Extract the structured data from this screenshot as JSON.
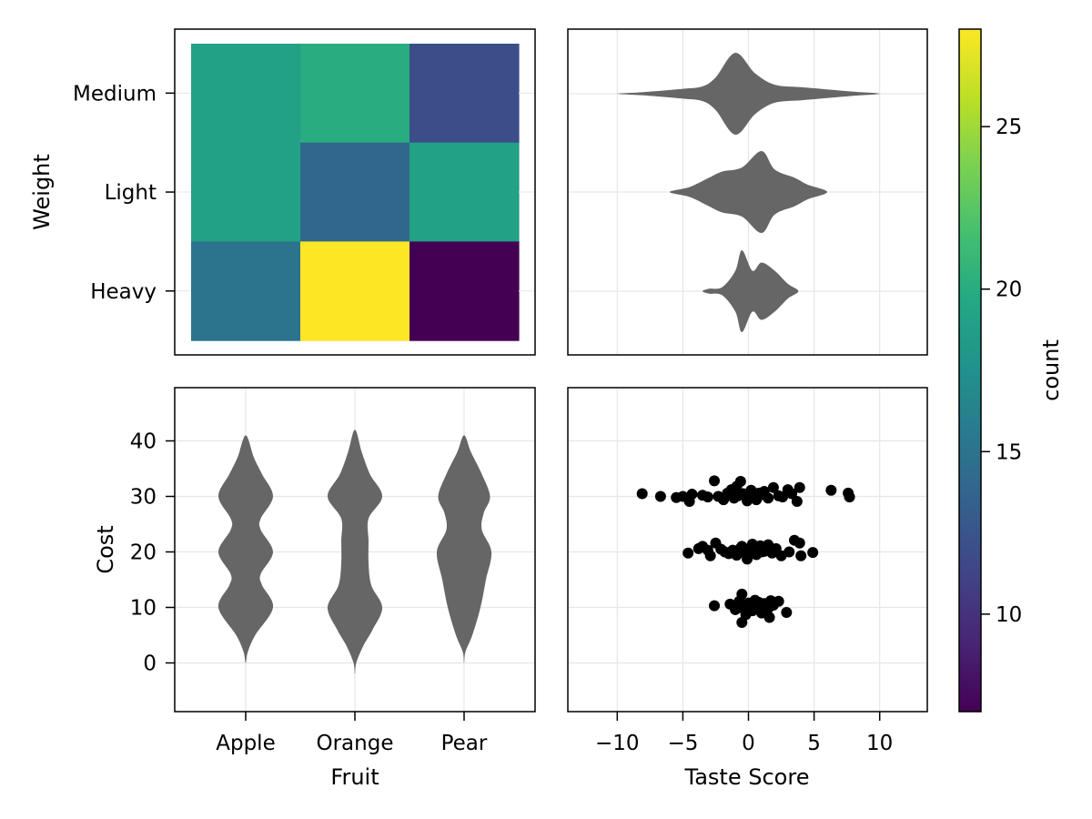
{
  "chart_data": [
    {
      "type": "heatmap",
      "panel": "top-left",
      "xlabel": "",
      "ylabel": "Weight",
      "x_categories": [
        "Apple",
        "Orange",
        "Pear"
      ],
      "y_categories": [
        "Heavy",
        "Light",
        "Medium"
      ],
      "values": [
        {
          "x": "Apple",
          "y": "Medium",
          "count": 19
        },
        {
          "x": "Orange",
          "y": "Medium",
          "count": 20
        },
        {
          "x": "Pear",
          "y": "Medium",
          "count": 12
        },
        {
          "x": "Apple",
          "y": "Light",
          "count": 19
        },
        {
          "x": "Orange",
          "y": "Light",
          "count": 14
        },
        {
          "x": "Pear",
          "y": "Light",
          "count": 19
        },
        {
          "x": "Apple",
          "y": "Heavy",
          "count": 15
        },
        {
          "x": "Orange",
          "y": "Heavy",
          "count": 28
        },
        {
          "x": "Pear",
          "y": "Heavy",
          "count": 7
        }
      ]
    },
    {
      "type": "violin",
      "panel": "top-right",
      "orientation": "horizontal",
      "xlabel": "",
      "ylabel": "",
      "categories": [
        "Medium",
        "Light",
        "Heavy"
      ],
      "xlim": [
        -13.5,
        13.5
      ],
      "xticks": [
        -10,
        -5,
        0,
        5,
        10
      ],
      "series": [
        {
          "name": "Medium",
          "profile": [
            [
              -10,
              0
            ],
            [
              -8,
              0.04
            ],
            [
              -5,
              0.12
            ],
            [
              -3.5,
              0.18
            ],
            [
              -2.5,
              0.4
            ],
            [
              -1,
              1
            ],
            [
              0.5,
              0.5
            ],
            [
              2,
              0.22
            ],
            [
              4,
              0.16
            ],
            [
              5.5,
              0.12
            ],
            [
              8,
              0.05
            ],
            [
              10,
              0
            ]
          ]
        },
        {
          "name": "Light",
          "profile": [
            [
              -6,
              0
            ],
            [
              -4.5,
              0.12
            ],
            [
              -3,
              0.35
            ],
            [
              -2,
              0.5
            ],
            [
              -0.5,
              0.6
            ],
            [
              1,
              1
            ],
            [
              2,
              0.55
            ],
            [
              3.5,
              0.35
            ],
            [
              4.5,
              0.18
            ],
            [
              6,
              0
            ]
          ]
        },
        {
          "name": "Heavy",
          "profile": [
            [
              -3.5,
              0
            ],
            [
              -3,
              0.06
            ],
            [
              -2,
              0.1
            ],
            [
              -1,
              0.5
            ],
            [
              -0.5,
              1
            ],
            [
              0.3,
              0.5
            ],
            [
              1,
              0.7
            ],
            [
              2,
              0.5
            ],
            [
              3,
              0.18
            ],
            [
              3.8,
              0
            ]
          ]
        }
      ]
    },
    {
      "type": "violin",
      "panel": "bottom-left",
      "orientation": "vertical",
      "xlabel": "Fruit",
      "ylabel": "Cost",
      "categories": [
        "Apple",
        "Orange",
        "Pear"
      ],
      "ylim": [
        -9,
        49
      ],
      "yticks": [
        0,
        10,
        20,
        30,
        40
      ],
      "series": [
        {
          "name": "Apple",
          "profile": [
            [
              0,
              0
            ],
            [
              2,
              0.08
            ],
            [
              5,
              0.35
            ],
            [
              10,
              1
            ],
            [
              14,
              0.6
            ],
            [
              16,
              0.55
            ],
            [
              20,
              1
            ],
            [
              24,
              0.55
            ],
            [
              26,
              0.55
            ],
            [
              30,
              1
            ],
            [
              34,
              0.6
            ],
            [
              37,
              0.3
            ],
            [
              41,
              0
            ]
          ]
        },
        {
          "name": "Orange",
          "profile": [
            [
              -2,
              0
            ],
            [
              0,
              0.05
            ],
            [
              3,
              0.3
            ],
            [
              6,
              0.65
            ],
            [
              10,
              1
            ],
            [
              14,
              0.6
            ],
            [
              18,
              0.5
            ],
            [
              22,
              0.5
            ],
            [
              26,
              0.5
            ],
            [
              30,
              1
            ],
            [
              34,
              0.55
            ],
            [
              38,
              0.25
            ],
            [
              42,
              0
            ]
          ]
        },
        {
          "name": "Pear",
          "profile": [
            [
              0,
              0
            ],
            [
              2,
              0.05
            ],
            [
              5,
              0.3
            ],
            [
              10,
              0.6
            ],
            [
              15,
              0.8
            ],
            [
              20,
              1
            ],
            [
              24,
              0.65
            ],
            [
              27,
              0.72
            ],
            [
              30,
              0.95
            ],
            [
              34,
              0.65
            ],
            [
              38,
              0.25
            ],
            [
              41,
              0
            ]
          ]
        }
      ]
    },
    {
      "type": "scatter",
      "panel": "bottom-right",
      "xlabel": "Taste Score",
      "ylabel": "",
      "xlim": [
        -13.5,
        13.5
      ],
      "ylim": [
        -9,
        49
      ],
      "xticks": [
        -10,
        -5,
        0,
        5,
        10
      ],
      "yticks": [
        0,
        10,
        20,
        30,
        40
      ],
      "points": [
        [
          -8.1,
          30.5
        ],
        [
          -6.7,
          30.0
        ],
        [
          -5.5,
          29.8
        ],
        [
          -5.0,
          30.0
        ],
        [
          -4.5,
          29.1
        ],
        [
          -4.3,
          30.4
        ],
        [
          -3.5,
          30.2
        ],
        [
          -3.1,
          29.9
        ],
        [
          -2.6,
          32.8
        ],
        [
          -2.3,
          30.0
        ],
        [
          -1.9,
          29.4
        ],
        [
          -1.6,
          30.6
        ],
        [
          -1.3,
          31.2
        ],
        [
          -1.1,
          29.7
        ],
        [
          -0.8,
          30.1
        ],
        [
          -0.6,
          32.7
        ],
        [
          -0.4,
          30.5
        ],
        [
          -0.1,
          29.2
        ],
        [
          0.2,
          31.1
        ],
        [
          0.4,
          30.0
        ],
        [
          0.8,
          30.6
        ],
        [
          1.2,
          30.9
        ],
        [
          1.5,
          29.7
        ],
        [
          1.9,
          31.6
        ],
        [
          2.3,
          30.1
        ],
        [
          2.6,
          29.9
        ],
        [
          3.0,
          31.2
        ],
        [
          3.3,
          30.5
        ],
        [
          3.7,
          29.1
        ],
        [
          3.9,
          31.6
        ],
        [
          6.3,
          31.1
        ],
        [
          7.6,
          30.6
        ],
        [
          7.7,
          29.9
        ],
        [
          -0.9,
          31.8
        ],
        [
          0.6,
          29.4
        ],
        [
          1.1,
          30.3
        ],
        [
          -4.6,
          19.8
        ],
        [
          -3.5,
          21.0
        ],
        [
          -3.1,
          20.3
        ],
        [
          -2.9,
          19.3
        ],
        [
          -2.5,
          21.6
        ],
        [
          -2.1,
          20.5
        ],
        [
          -1.8,
          20.0
        ],
        [
          -1.5,
          19.7
        ],
        [
          -1.2,
          20.3
        ],
        [
          -0.9,
          19.4
        ],
        [
          -0.6,
          20.7
        ],
        [
          -0.3,
          19.9
        ],
        [
          -0.1,
          18.7
        ],
        [
          0.2,
          20.4
        ],
        [
          0.6,
          19.5
        ],
        [
          0.9,
          21.1
        ],
        [
          1.2,
          20.1
        ],
        [
          1.5,
          21.3
        ],
        [
          1.8,
          19.8
        ],
        [
          2.1,
          20.6
        ],
        [
          2.5,
          19.3
        ],
        [
          3.1,
          20.0
        ],
        [
          3.5,
          22.1
        ],
        [
          3.9,
          21.6
        ],
        [
          4.0,
          19.3
        ],
        [
          4.9,
          19.9
        ],
        [
          -3.8,
          20.6
        ],
        [
          -0.5,
          21.0
        ],
        [
          1.0,
          20.0
        ],
        [
          0.3,
          21.4
        ],
        [
          -2.6,
          10.3
        ],
        [
          -1.4,
          10.6
        ],
        [
          -1.0,
          9.6
        ],
        [
          -0.7,
          11.1
        ],
        [
          -0.5,
          12.4
        ],
        [
          -0.4,
          10.0
        ],
        [
          -0.2,
          8.7
        ],
        [
          0.0,
          10.8
        ],
        [
          0.3,
          9.4
        ],
        [
          0.5,
          11.3
        ],
        [
          0.7,
          10.1
        ],
        [
          1.0,
          9.0
        ],
        [
          1.2,
          10.7
        ],
        [
          1.5,
          9.8
        ],
        [
          1.7,
          11.2
        ],
        [
          1.9,
          10.4
        ],
        [
          2.3,
          11.1
        ],
        [
          2.9,
          9.1
        ],
        [
          -0.5,
          7.3
        ],
        [
          -0.3,
          9.6
        ],
        [
          0.8,
          10.9
        ],
        [
          1.6,
          8.2
        ]
      ]
    }
  ],
  "colorbar": {
    "label": "count",
    "range": [
      7,
      28
    ],
    "ticks": [
      10,
      15,
      20,
      25
    ],
    "colormap": "viridis"
  },
  "colors": {
    "violin_fill": "#666666",
    "scatter_point": "#000000",
    "grid": "#e6e6e6",
    "axis": "#000000"
  }
}
